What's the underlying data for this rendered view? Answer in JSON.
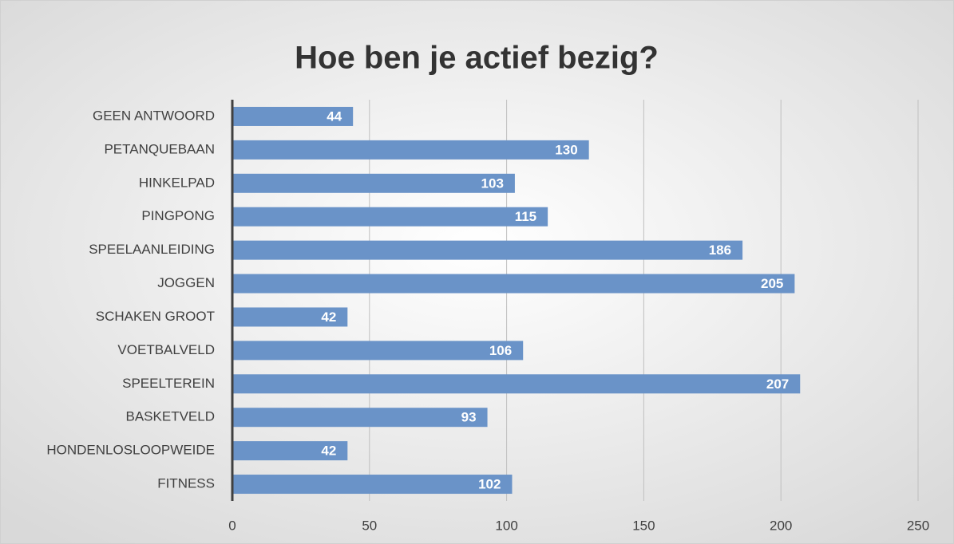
{
  "chart_data": {
    "type": "bar",
    "orientation": "horizontal",
    "title": "Hoe ben je actief bezig?",
    "categories": [
      "GEEN ANTWOORD",
      "PETANQUEBAAN",
      "HINKELPAD",
      "PINGPONG",
      "SPEELAANLEIDING",
      "JOGGEN",
      "SCHAKEN GROOT",
      "VOETBALVELD",
      "SPEELTEREIN",
      "BASKETVELD",
      "HONDENLOSLOOPWEIDE",
      "FITNESS"
    ],
    "values": [
      44,
      130,
      103,
      115,
      186,
      205,
      42,
      106,
      207,
      93,
      42,
      102
    ],
    "color": "#6a93c8",
    "xlim": [
      0,
      250
    ],
    "xticks": [
      0,
      50,
      100,
      150,
      200,
      250
    ],
    "grid": true
  }
}
